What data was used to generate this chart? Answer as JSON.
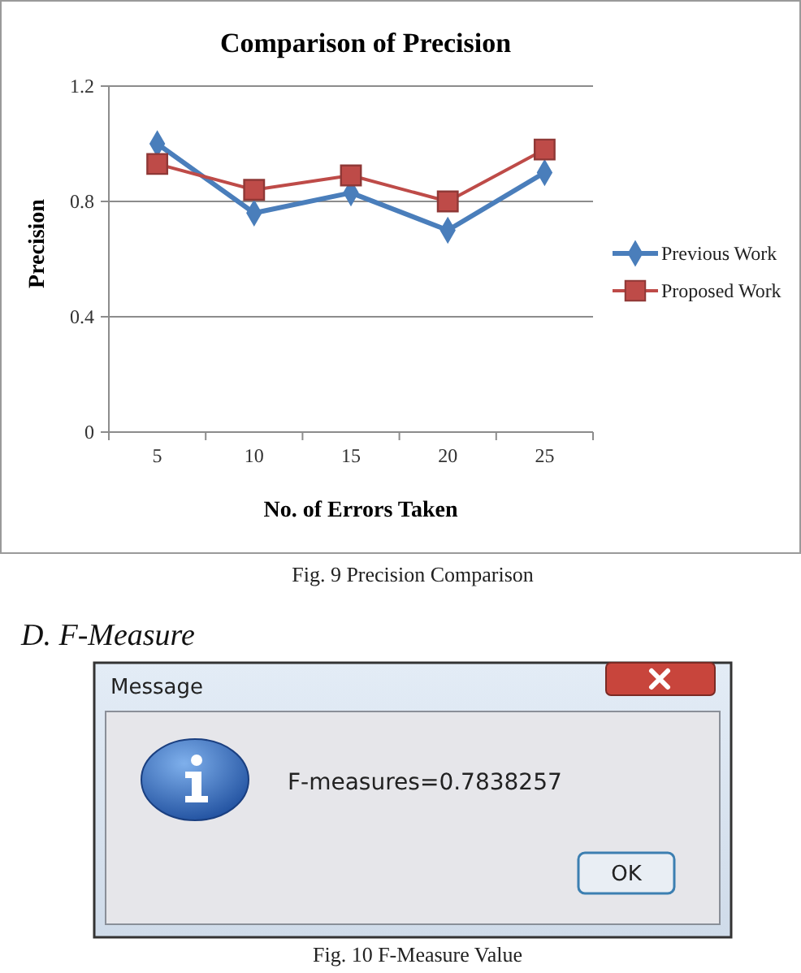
{
  "chart_data": [
    {
      "type": "line",
      "title": "Comparison of Precision",
      "xlabel": "No. of Errors Taken",
      "ylabel": "Precision",
      "categories": [
        "5",
        "10",
        "15",
        "20",
        "25"
      ],
      "series": [
        {
          "name": "Previous Work",
          "color": "#4a7ebb",
          "marker": "diamond",
          "values": [
            1.0,
            0.76,
            0.83,
            0.7,
            0.9
          ]
        },
        {
          "name": "Proposed Work",
          "color": "#be4b48",
          "marker": "square",
          "values": [
            0.93,
            0.84,
            0.89,
            0.8,
            0.98
          ]
        }
      ],
      "ylim": [
        0,
        1.2
      ],
      "yticks": [
        0,
        0.4,
        0.8,
        1.2
      ],
      "grid": "y",
      "legend": "right",
      "annotations": [
        "Fig. 9 Precision Comparison"
      ]
    },
    {
      "type": "other",
      "title": "D. F-Measure",
      "annotations": [
        "Message",
        "F-measures=0.7838257",
        "OK",
        "Fig. 10 F-Measure Value"
      ]
    }
  ]
}
